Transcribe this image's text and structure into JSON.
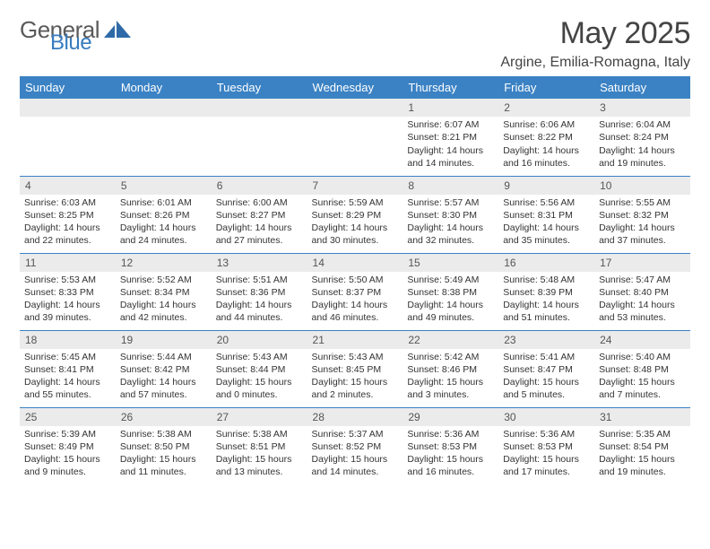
{
  "brand": {
    "word1": "General",
    "word2": "Blue"
  },
  "title": "May 2025",
  "location": "Argine, Emilia-Romagna, Italy",
  "colors": {
    "header_bg": "#3b82c4",
    "header_text": "#ffffff",
    "daynum_bg": "#ebebeb",
    "divider": "#3b82c4",
    "body_text": "#333333",
    "title_text": "#444444",
    "logo_gray": "#5a5a5a",
    "logo_blue": "#377bbf"
  },
  "weekdays": [
    "Sunday",
    "Monday",
    "Tuesday",
    "Wednesday",
    "Thursday",
    "Friday",
    "Saturday"
  ],
  "weeks": [
    [
      null,
      null,
      null,
      null,
      {
        "n": "1",
        "sr": "6:07 AM",
        "ss": "8:21 PM",
        "dl": "14 hours and 14 minutes."
      },
      {
        "n": "2",
        "sr": "6:06 AM",
        "ss": "8:22 PM",
        "dl": "14 hours and 16 minutes."
      },
      {
        "n": "3",
        "sr": "6:04 AM",
        "ss": "8:24 PM",
        "dl": "14 hours and 19 minutes."
      }
    ],
    [
      {
        "n": "4",
        "sr": "6:03 AM",
        "ss": "8:25 PM",
        "dl": "14 hours and 22 minutes."
      },
      {
        "n": "5",
        "sr": "6:01 AM",
        "ss": "8:26 PM",
        "dl": "14 hours and 24 minutes."
      },
      {
        "n": "6",
        "sr": "6:00 AM",
        "ss": "8:27 PM",
        "dl": "14 hours and 27 minutes."
      },
      {
        "n": "7",
        "sr": "5:59 AM",
        "ss": "8:29 PM",
        "dl": "14 hours and 30 minutes."
      },
      {
        "n": "8",
        "sr": "5:57 AM",
        "ss": "8:30 PM",
        "dl": "14 hours and 32 minutes."
      },
      {
        "n": "9",
        "sr": "5:56 AM",
        "ss": "8:31 PM",
        "dl": "14 hours and 35 minutes."
      },
      {
        "n": "10",
        "sr": "5:55 AM",
        "ss": "8:32 PM",
        "dl": "14 hours and 37 minutes."
      }
    ],
    [
      {
        "n": "11",
        "sr": "5:53 AM",
        "ss": "8:33 PM",
        "dl": "14 hours and 39 minutes."
      },
      {
        "n": "12",
        "sr": "5:52 AM",
        "ss": "8:34 PM",
        "dl": "14 hours and 42 minutes."
      },
      {
        "n": "13",
        "sr": "5:51 AM",
        "ss": "8:36 PM",
        "dl": "14 hours and 44 minutes."
      },
      {
        "n": "14",
        "sr": "5:50 AM",
        "ss": "8:37 PM",
        "dl": "14 hours and 46 minutes."
      },
      {
        "n": "15",
        "sr": "5:49 AM",
        "ss": "8:38 PM",
        "dl": "14 hours and 49 minutes."
      },
      {
        "n": "16",
        "sr": "5:48 AM",
        "ss": "8:39 PM",
        "dl": "14 hours and 51 minutes."
      },
      {
        "n": "17",
        "sr": "5:47 AM",
        "ss": "8:40 PM",
        "dl": "14 hours and 53 minutes."
      }
    ],
    [
      {
        "n": "18",
        "sr": "5:45 AM",
        "ss": "8:41 PM",
        "dl": "14 hours and 55 minutes."
      },
      {
        "n": "19",
        "sr": "5:44 AM",
        "ss": "8:42 PM",
        "dl": "14 hours and 57 minutes."
      },
      {
        "n": "20",
        "sr": "5:43 AM",
        "ss": "8:44 PM",
        "dl": "15 hours and 0 minutes."
      },
      {
        "n": "21",
        "sr": "5:43 AM",
        "ss": "8:45 PM",
        "dl": "15 hours and 2 minutes."
      },
      {
        "n": "22",
        "sr": "5:42 AM",
        "ss": "8:46 PM",
        "dl": "15 hours and 3 minutes."
      },
      {
        "n": "23",
        "sr": "5:41 AM",
        "ss": "8:47 PM",
        "dl": "15 hours and 5 minutes."
      },
      {
        "n": "24",
        "sr": "5:40 AM",
        "ss": "8:48 PM",
        "dl": "15 hours and 7 minutes."
      }
    ],
    [
      {
        "n": "25",
        "sr": "5:39 AM",
        "ss": "8:49 PM",
        "dl": "15 hours and 9 minutes."
      },
      {
        "n": "26",
        "sr": "5:38 AM",
        "ss": "8:50 PM",
        "dl": "15 hours and 11 minutes."
      },
      {
        "n": "27",
        "sr": "5:38 AM",
        "ss": "8:51 PM",
        "dl": "15 hours and 13 minutes."
      },
      {
        "n": "28",
        "sr": "5:37 AM",
        "ss": "8:52 PM",
        "dl": "15 hours and 14 minutes."
      },
      {
        "n": "29",
        "sr": "5:36 AM",
        "ss": "8:53 PM",
        "dl": "15 hours and 16 minutes."
      },
      {
        "n": "30",
        "sr": "5:36 AM",
        "ss": "8:53 PM",
        "dl": "15 hours and 17 minutes."
      },
      {
        "n": "31",
        "sr": "5:35 AM",
        "ss": "8:54 PM",
        "dl": "15 hours and 19 minutes."
      }
    ]
  ],
  "labels": {
    "sunrise": "Sunrise:",
    "sunset": "Sunset:",
    "daylight": "Daylight:"
  }
}
